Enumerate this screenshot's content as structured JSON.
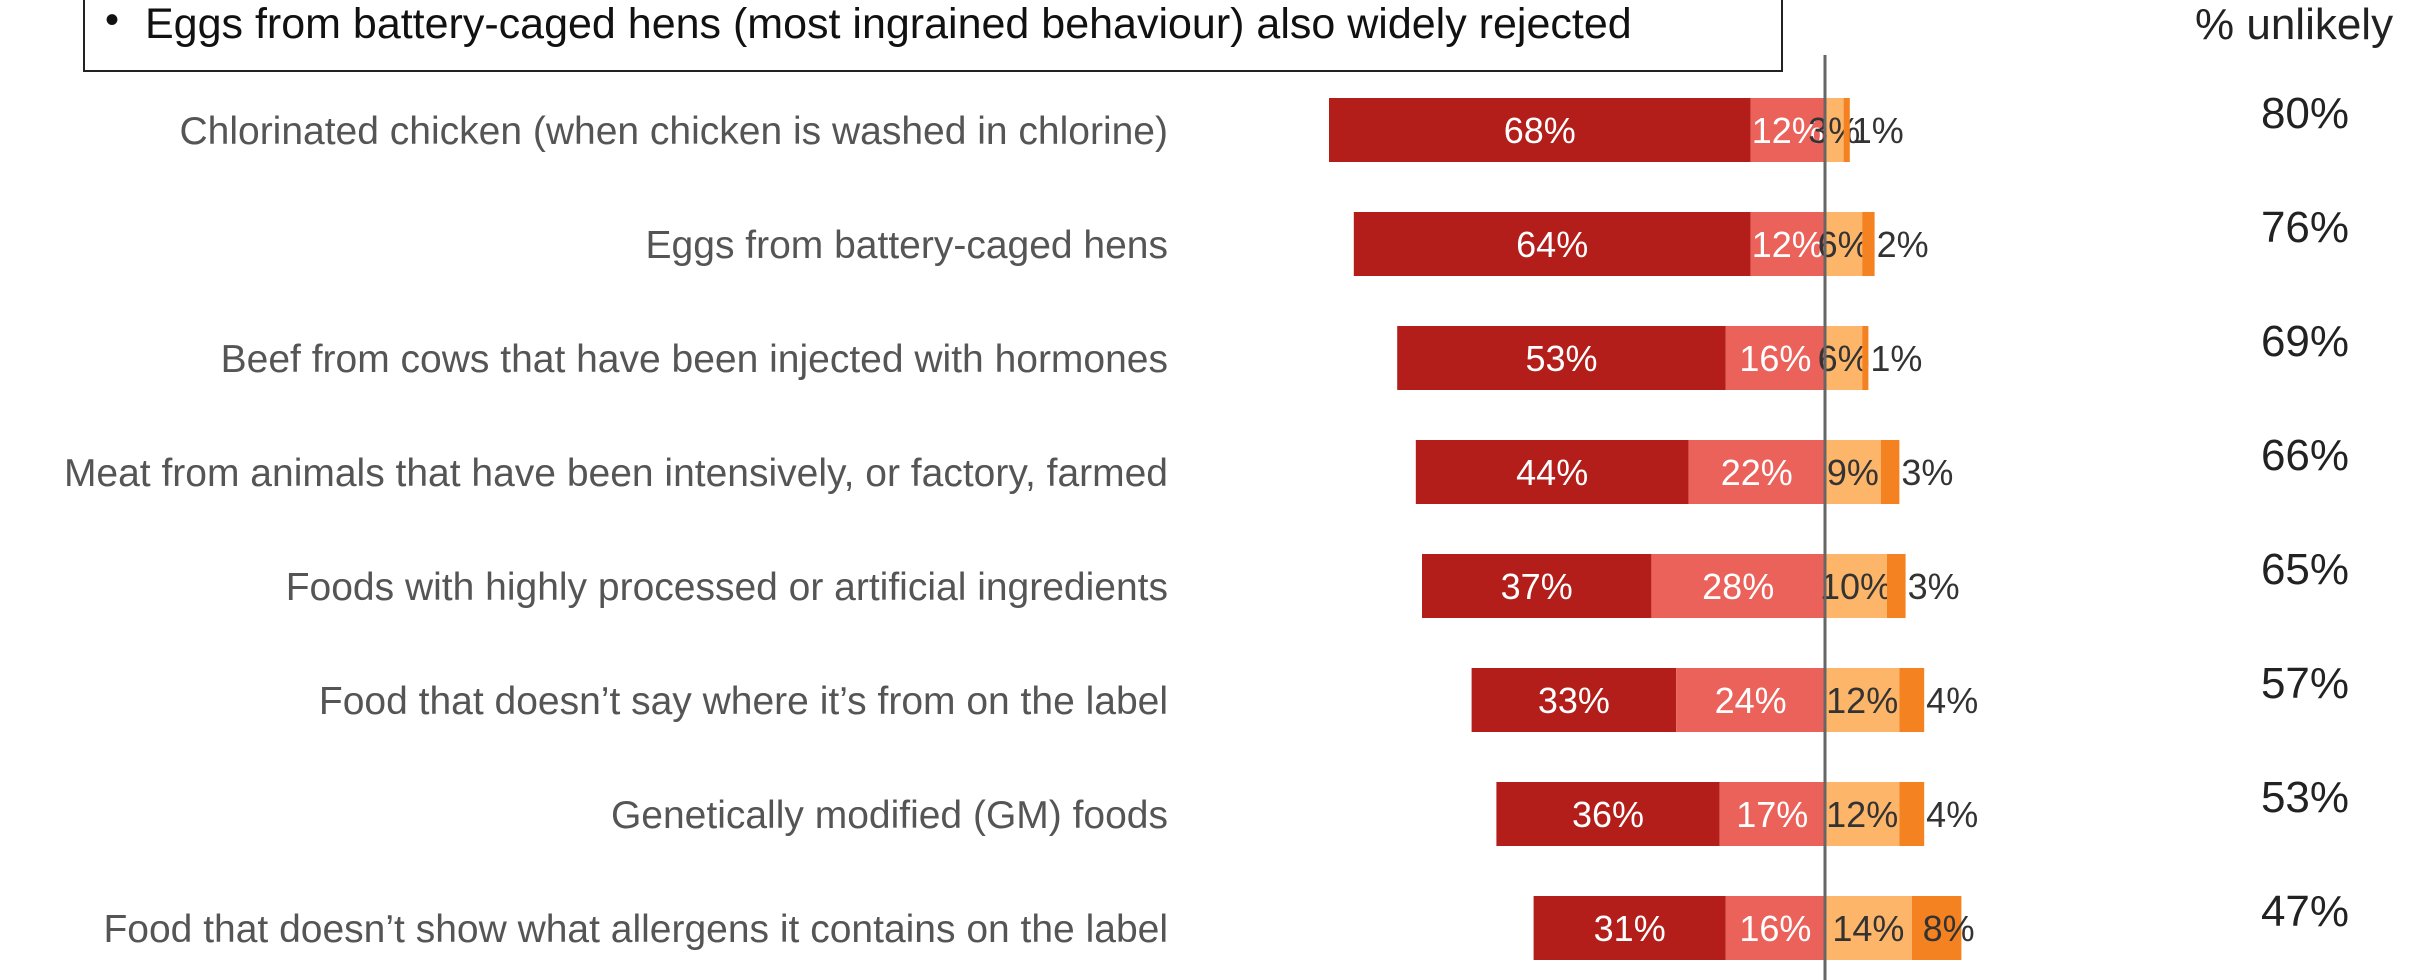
{
  "callout": {
    "bullet": "•",
    "text": "Eggs from battery-caged hens (most ingrained behaviour) also widely rejected"
  },
  "unlikely_header": "% unlikely",
  "colors": {
    "very_unlikely": "#b31e1a",
    "fairly_unlikely": "#eb625b",
    "fairly_likely": "#fdb56a",
    "very_likely": "#f58220",
    "axis": "#666666",
    "label_text": "#555555",
    "inbar_text_light": "#ffffff",
    "inbar_text_dark": "#333333"
  },
  "chart_data": {
    "type": "bar",
    "orientation": "horizontal-diverging",
    "categories": [
      "Chlorinated chicken (when chicken is washed in chlorine)",
      "Eggs from battery-caged hens",
      "Beef from cows that have been injected with hormones",
      "Meat from animals that have been intensively, or factory, farmed",
      "Foods with highly processed or artificial ingredients",
      "Food that doesn’t say where it’s from on the label",
      "Genetically modified (GM) foods",
      "Food that doesn’t show what allergens it contains on the label"
    ],
    "series": [
      {
        "key": "very_unlikely",
        "side": "left",
        "values": [
          68,
          64,
          53,
          44,
          37,
          33,
          36,
          31
        ]
      },
      {
        "key": "fairly_unlikely",
        "side": "left",
        "values": [
          12,
          12,
          16,
          22,
          28,
          24,
          17,
          16
        ]
      },
      {
        "key": "fairly_likely",
        "side": "right",
        "values": [
          3,
          6,
          6,
          9,
          10,
          12,
          12,
          14
        ]
      },
      {
        "key": "very_likely",
        "side": "right",
        "values": [
          1,
          2,
          1,
          3,
          3,
          4,
          4,
          8
        ]
      }
    ],
    "percent_unlikely": [
      "80%",
      "76%",
      "69%",
      "66%",
      "65%",
      "57%",
      "53%",
      "47%"
    ],
    "value_suffix": "%"
  }
}
